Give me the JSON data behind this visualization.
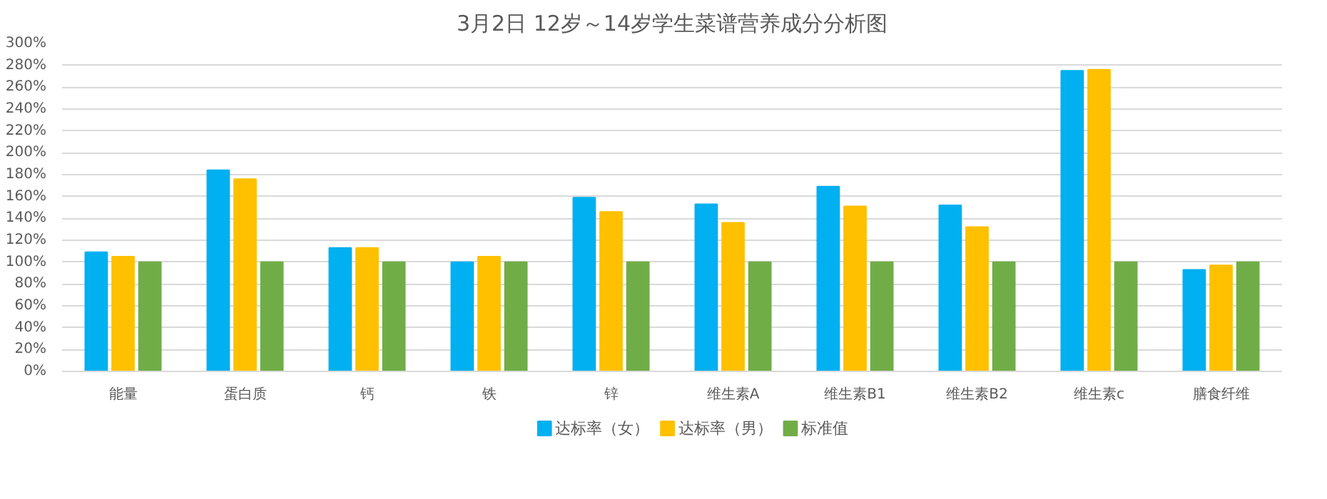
{
  "chart_data": {
    "type": "bar",
    "title": "3月2日 12岁～14岁学生菜谱营养成分分析图",
    "categories": [
      "能量",
      "蛋白质",
      "钙",
      "铁",
      "锌",
      "维生素A",
      "维生素B1",
      "维生素B2",
      "维生素c",
      "膳食纤维"
    ],
    "series": [
      {
        "name": "达标率（女）",
        "color": "#00b0f0",
        "values": [
          109,
          184,
          113,
          100,
          159,
          153,
          169,
          152,
          275,
          93
        ]
      },
      {
        "name": "达标率（男）",
        "color": "#ffc000",
        "values": [
          105,
          176,
          113,
          105,
          146,
          136,
          151,
          132,
          276,
          97
        ]
      },
      {
        "name": "标准值",
        "color": "#70ad47",
        "values": [
          100,
          100,
          100,
          100,
          100,
          100,
          100,
          100,
          100,
          100
        ]
      }
    ],
    "ylim": [
      0,
      300
    ],
    "yticks": [
      {
        "value": 0,
        "label": "0%"
      },
      {
        "value": 20,
        "label": "20%"
      },
      {
        "value": 40,
        "label": "40%"
      },
      {
        "value": 60,
        "label": "60%"
      },
      {
        "value": 80,
        "label": "80%"
      },
      {
        "value": 100,
        "label": "100%"
      },
      {
        "value": 120,
        "label": "120%"
      },
      {
        "value": 140,
        "label": "140%"
      },
      {
        "value": 160,
        "label": "160%"
      },
      {
        "value": 180,
        "label": "180%"
      },
      {
        "value": 200,
        "label": "200%"
      },
      {
        "value": 220,
        "label": "220%"
      },
      {
        "value": 240,
        "label": "240%"
      },
      {
        "value": 260,
        "label": "260%"
      },
      {
        "value": 280,
        "label": "280%"
      },
      {
        "value": 300,
        "label": "300%"
      }
    ],
    "grid": "y",
    "legend": "bottom"
  }
}
